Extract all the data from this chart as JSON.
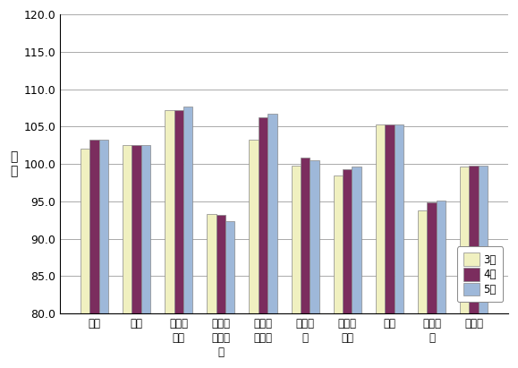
{
  "categories": [
    "食料",
    "住居",
    "光熱・\n水道",
    "家具・\n家事用\n品",
    "被服及\nび履物",
    "保健医\n療",
    "交通・\n通信",
    "教育",
    "教養娯\n楽",
    "諸雑費"
  ],
  "march": [
    102.0,
    102.5,
    107.2,
    93.3,
    103.3,
    99.8,
    98.5,
    105.3,
    93.8,
    99.7
  ],
  "april": [
    103.2,
    102.5,
    107.2,
    93.2,
    106.2,
    100.9,
    99.3,
    105.3,
    94.8,
    99.8
  ],
  "may": [
    103.2,
    102.5,
    107.7,
    92.3,
    106.7,
    100.5,
    99.7,
    105.3,
    95.1,
    99.8
  ],
  "march_color": "#f0f0c0",
  "april_color": "#7b2d5e",
  "may_color": "#9eb8d9",
  "ylabel": "指\n数",
  "ylim_min": 80.0,
  "ylim_max": 120.0,
  "yticks": [
    80.0,
    85.0,
    90.0,
    95.0,
    100.0,
    105.0,
    110.0,
    115.0,
    120.0
  ],
  "legend_labels": [
    "3月",
    "4月",
    "5月"
  ],
  "bar_width": 0.22,
  "background_color": "#ffffff",
  "grid_color": "#aaaaaa",
  "教育_april": null,
  "教育_may": null
}
